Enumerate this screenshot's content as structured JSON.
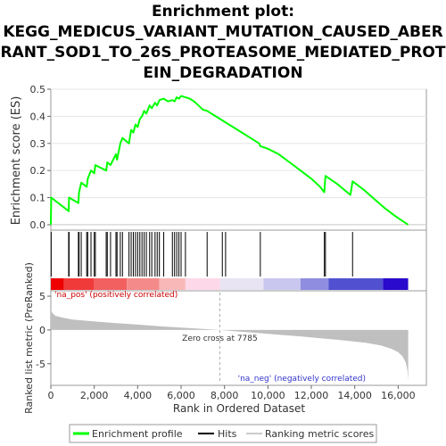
{
  "title_lines": [
    "Enrichment plot:",
    "KEGG_MEDICUS_VARIANT_MUTATION_CAUSED_ABER",
    "RANT_SOD1_TO_26S_PROTEASOME_MEDIATED_PROT",
    "EIN_DEGRADATION"
  ],
  "chart_data": {
    "type": "line",
    "es_panel": {
      "ylabel": "Enrichment score (ES)",
      "ylim": [
        -0.02,
        0.5
      ],
      "yticks": [
        "0.0",
        "0.1",
        "0.2",
        "0.3",
        "0.4",
        "0.5"
      ],
      "yticks_values": [
        0.0,
        0.1,
        0.2,
        0.3,
        0.4,
        0.5
      ],
      "series_color": "#00ff00",
      "x": [
        0,
        15,
        820,
        840,
        1270,
        1300,
        1400,
        1650,
        1700,
        1850,
        2000,
        2050,
        2550,
        2600,
        2750,
        3000,
        3050,
        3200,
        3300,
        3600,
        3700,
        3800,
        3900,
        4000,
        4100,
        4200,
        4300,
        4400,
        4550,
        4650,
        4800,
        4900,
        5000,
        5200,
        5400,
        5600,
        5700,
        5800,
        5900,
        6000,
        6200,
        6400,
        6600,
        6800,
        7000,
        7200,
        7600,
        8000,
        8400,
        8800,
        9200,
        9600,
        9650,
        10000,
        10500,
        11000,
        11500,
        12000,
        12400,
        12600,
        12650,
        13200,
        13800,
        13900,
        14400,
        14900,
        15400,
        15900,
        16460
      ],
      "y": [
        0.0,
        0.1,
        0.05,
        0.1,
        0.08,
        0.12,
        0.155,
        0.14,
        0.17,
        0.2,
        0.19,
        0.22,
        0.2,
        0.23,
        0.22,
        0.26,
        0.24,
        0.3,
        0.32,
        0.3,
        0.35,
        0.34,
        0.37,
        0.36,
        0.39,
        0.4,
        0.42,
        0.41,
        0.44,
        0.43,
        0.45,
        0.44,
        0.46,
        0.465,
        0.455,
        0.46,
        0.455,
        0.47,
        0.465,
        0.475,
        0.47,
        0.465,
        0.455,
        0.44,
        0.425,
        0.42,
        0.4,
        0.38,
        0.36,
        0.34,
        0.32,
        0.3,
        0.29,
        0.28,
        0.26,
        0.23,
        0.2,
        0.17,
        0.14,
        0.12,
        0.18,
        0.15,
        0.11,
        0.16,
        0.13,
        0.095,
        0.06,
        0.03,
        0.0
      ]
    },
    "hits": [
      15,
      820,
      840,
      1270,
      1300,
      1400,
      1650,
      1700,
      1850,
      2000,
      2050,
      2550,
      2600,
      2750,
      3000,
      3050,
      3200,
      3300,
      3600,
      3700,
      3800,
      3900,
      4000,
      4100,
      4200,
      4300,
      4400,
      4550,
      4650,
      4800,
      4900,
      5000,
      5200,
      5600,
      5700,
      5800,
      5900,
      6000,
      6200,
      7200,
      7900,
      8050,
      9650,
      12600,
      12650,
      13900
    ],
    "rank_panel": {
      "ylabel": "Ranked list metric (PreRanked)",
      "ylim": [
        -8.2,
        5.8
      ],
      "yticks": [
        "5",
        "0",
        "-5"
      ],
      "yticks_values": [
        5,
        0,
        -5
      ],
      "metric_x": [
        0,
        50,
        200,
        500,
        1000,
        2000,
        3000,
        4000,
        5000,
        6000,
        7000,
        7785,
        8500,
        9500,
        10500,
        11500,
        12500,
        13500,
        14500,
        15200,
        15700,
        16000,
        16200,
        16350,
        16430,
        16460
      ],
      "metric_y": [
        3.2,
        2.6,
        2.1,
        1.85,
        1.55,
        1.25,
        1.0,
        0.8,
        0.55,
        0.35,
        0.15,
        0.0,
        -0.2,
        -0.45,
        -0.7,
        -0.95,
        -1.25,
        -1.55,
        -1.9,
        -2.3,
        -2.8,
        -3.3,
        -3.9,
        -4.8,
        -6.0,
        -7.5
      ],
      "pos_label": "'na_pos' (positively correlated)",
      "neg_label": "'na_neg' (negatively correlated)",
      "zero_cross_label": "Zero cross at 7785",
      "zero_cross": 7785
    },
    "x_axis": {
      "xlabel": "Rank in Ordered Dataset",
      "xlim": [
        0,
        17300
      ],
      "xticks": [
        "0",
        "2,000",
        "4,000",
        "6,000",
        "8,000",
        "10,000",
        "12,000",
        "14,000",
        "16,000"
      ],
      "xticks_values": [
        0,
        2000,
        4000,
        6000,
        8000,
        10000,
        12000,
        14000,
        16000
      ]
    },
    "colorbar": [
      {
        "start": 0,
        "end": 600,
        "color": "#ee0000"
      },
      {
        "start": 600,
        "end": 2000,
        "color": "#f03a3a"
      },
      {
        "start": 2000,
        "end": 3500,
        "color": "#f26060"
      },
      {
        "start": 3500,
        "end": 5000,
        "color": "#f58a8a"
      },
      {
        "start": 5000,
        "end": 6200,
        "color": "#f8b8b8"
      },
      {
        "start": 6200,
        "end": 7800,
        "color": "#fcd8e8"
      },
      {
        "start": 7800,
        "end": 9800,
        "color": "#e8e4f4"
      },
      {
        "start": 9800,
        "end": 11500,
        "color": "#c9c7ef"
      },
      {
        "start": 11500,
        "end": 12800,
        "color": "#8f8de0"
      },
      {
        "start": 12800,
        "end": 15300,
        "color": "#5050d0"
      },
      {
        "start": 15300,
        "end": 16460,
        "color": "#2a0acc"
      }
    ],
    "legend": {
      "items": [
        "Enrichment profile",
        "Hits",
        "Ranking metric scores"
      ],
      "colors": [
        "#00ff00",
        "#000000",
        "#cccccc"
      ]
    }
  }
}
